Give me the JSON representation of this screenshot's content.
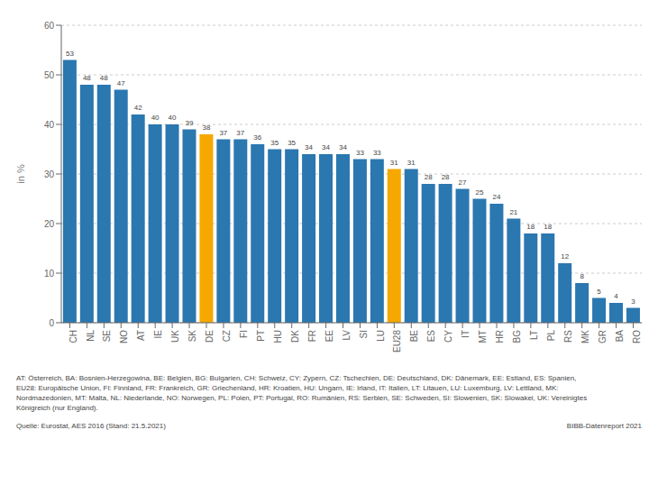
{
  "chart_data": {
    "type": "bar",
    "ylabel": "in %",
    "categories": [
      "CH",
      "NL",
      "SE",
      "NO",
      "AT",
      "IE",
      "UK",
      "SK",
      "DE",
      "CZ",
      "FI",
      "PT",
      "HU",
      "DK",
      "FR",
      "EE",
      "LV",
      "SI",
      "LU",
      "EU28",
      "BE",
      "ES",
      "CY",
      "IT",
      "MT",
      "HR",
      "BG",
      "LT",
      "PL",
      "RS",
      "MK",
      "GR",
      "BA",
      "RO"
    ],
    "values": [
      53,
      48,
      48,
      47,
      42,
      40,
      40,
      39,
      38,
      37,
      37,
      36,
      35,
      35,
      34,
      34,
      34,
      33,
      33,
      31,
      31,
      28,
      28,
      27,
      25,
      24,
      21,
      18,
      18,
      12,
      8,
      5,
      4,
      3
    ],
    "colors": [
      "#2b77b0",
      "#2b77b0",
      "#2b77b0",
      "#2b77b0",
      "#2b77b0",
      "#2b77b0",
      "#2b77b0",
      "#2b77b0",
      "#f5a800",
      "#2b77b0",
      "#2b77b0",
      "#2b77b0",
      "#2b77b0",
      "#2b77b0",
      "#2b77b0",
      "#2b77b0",
      "#2b77b0",
      "#2b77b0",
      "#2b77b0",
      "#f5a800",
      "#2b77b0",
      "#2b77b0",
      "#2b77b0",
      "#2b77b0",
      "#2b77b0",
      "#2b77b0",
      "#2b77b0",
      "#2b77b0",
      "#2b77b0",
      "#2b77b0",
      "#2b77b0",
      "#2b77b0",
      "#2b77b0",
      "#2b77b0"
    ],
    "ylim": [
      0,
      60
    ],
    "yticks": [
      0,
      10,
      20,
      30,
      40,
      50,
      60
    ],
    "grid": true,
    "data_labels": true,
    "annotations": [
      "AT: Österreich, BA: Bosnien-Herzegowina, BE: Belgien, BG: Bulgarien, CH: Schweiz, CY: Zypern, CZ: Tschechien, DE: Deutschland, DK: Dänemark, EE: Estland, ES: Spanien,",
      "EU28: Europäische Union, FI: Finnland, FR: Frankreich, GR: Griechenland, HR: Kroatien, HU: Ungarn, IE: Irland, IT: Italien, LT: Litauen, LU: Luxemburg, LV: Lettland, MK:",
      "Nordmazedonien, MT: Malta, NL: Niederlande, NO: Norwegen, PL: Polen, PT: Portugal, RO: Rumänien, RS: Serbien, SE: Schweden, SI: Slowenien, SK: Slowakei, UK: Vereinigtes",
      "Königreich (nur England)."
    ],
    "source": "Quelle: Eurostat, AES 2016 (Stand: 21.5.2021)",
    "credit": "BIBB-Datenreport 2021"
  }
}
